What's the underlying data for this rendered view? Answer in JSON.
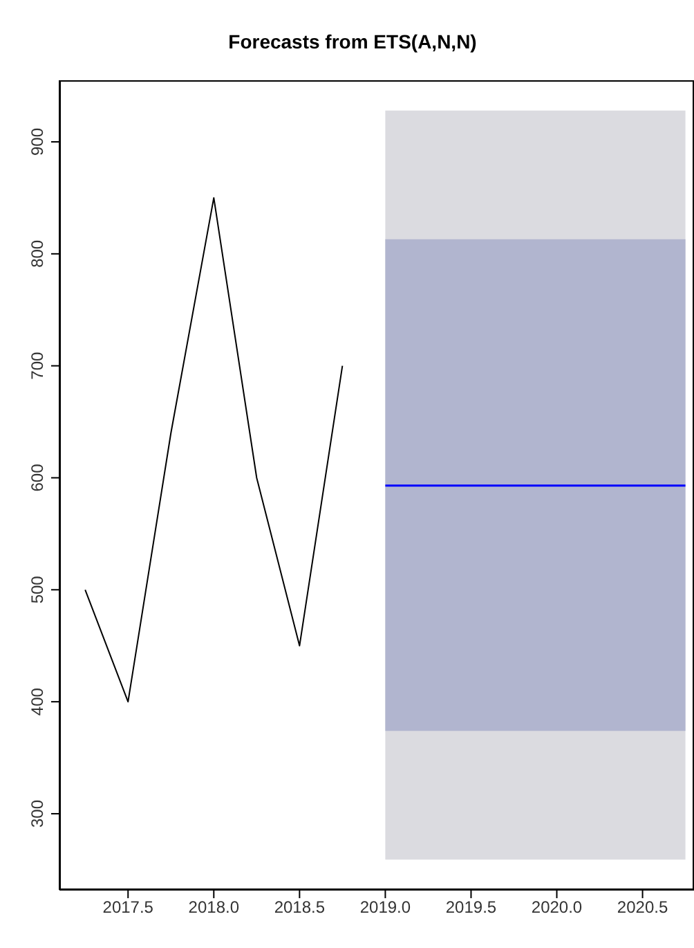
{
  "chart_data": {
    "type": "line",
    "title": "Forecasts from ETS(A,N,N)",
    "series": [
      {
        "type": "line",
        "color": "#dbdbe0",
        "x": [
          2019.0,
          2019.25,
          2019.5,
          2019.75,
          2020.0,
          2020.25,
          2020.5,
          2020.75
        ],
        "values": [
          null,
          null,
          null,
          null,
          null,
          null,
          null,
          null
        ],
        "lower": [
          259,
          259,
          259,
          259,
          259,
          259,
          259,
          259
        ],
        "upper": [
          928,
          928,
          928,
          928,
          928,
          928,
          928,
          928
        ]
      },
      {
        "type": "line",
        "color": "#b1b5cf",
        "x": [
          2019.0,
          2019.25,
          2019.5,
          2019.75,
          2020.0,
          2020.25,
          2020.5,
          2020.75
        ],
        "values": [
          null,
          null,
          null,
          null,
          null,
          null,
          null,
          null
        ],
        "lower": [
          374,
          374,
          374,
          374,
          374,
          374,
          374,
          374
        ],
        "upper": [
          813,
          813,
          813,
          813,
          813,
          813,
          813,
          813
        ]
      },
      {
        "type": "line",
        "color": "#000000",
        "x": [
          2017.25,
          2017.5,
          2017.75,
          2018.0,
          2018.25,
          2018.5,
          2018.75
        ],
        "values": [
          500,
          400,
          640,
          850,
          600,
          450,
          700
        ]
      },
      {
        "color": "#0000ff",
        "x": [
          2019.0,
          2019.25,
          2019.5,
          2019.75,
          2020.0,
          2020.25,
          2020.5,
          2020.75
        ],
        "values": [
          593,
          593,
          593,
          593,
          593,
          593,
          593,
          593
        ]
      }
    ],
    "xlim": [
      2017.1,
      2020.8
    ],
    "xticks": [
      2017.5,
      {
        "value": 2018,
        "label": "2018.0"
      },
      2018.5,
      {
        "value": 2019,
        "label": "2019.0"
      },
      2019.5,
      {
        "value": 2020,
        "label": "2020.0"
      },
      2020.5
    ],
    "ylim": [
      232,
      955
    ],
    "yticks": [
      300,
      400,
      500,
      600,
      700,
      800,
      900
    ],
    "grid": false,
    "legend": false
  }
}
